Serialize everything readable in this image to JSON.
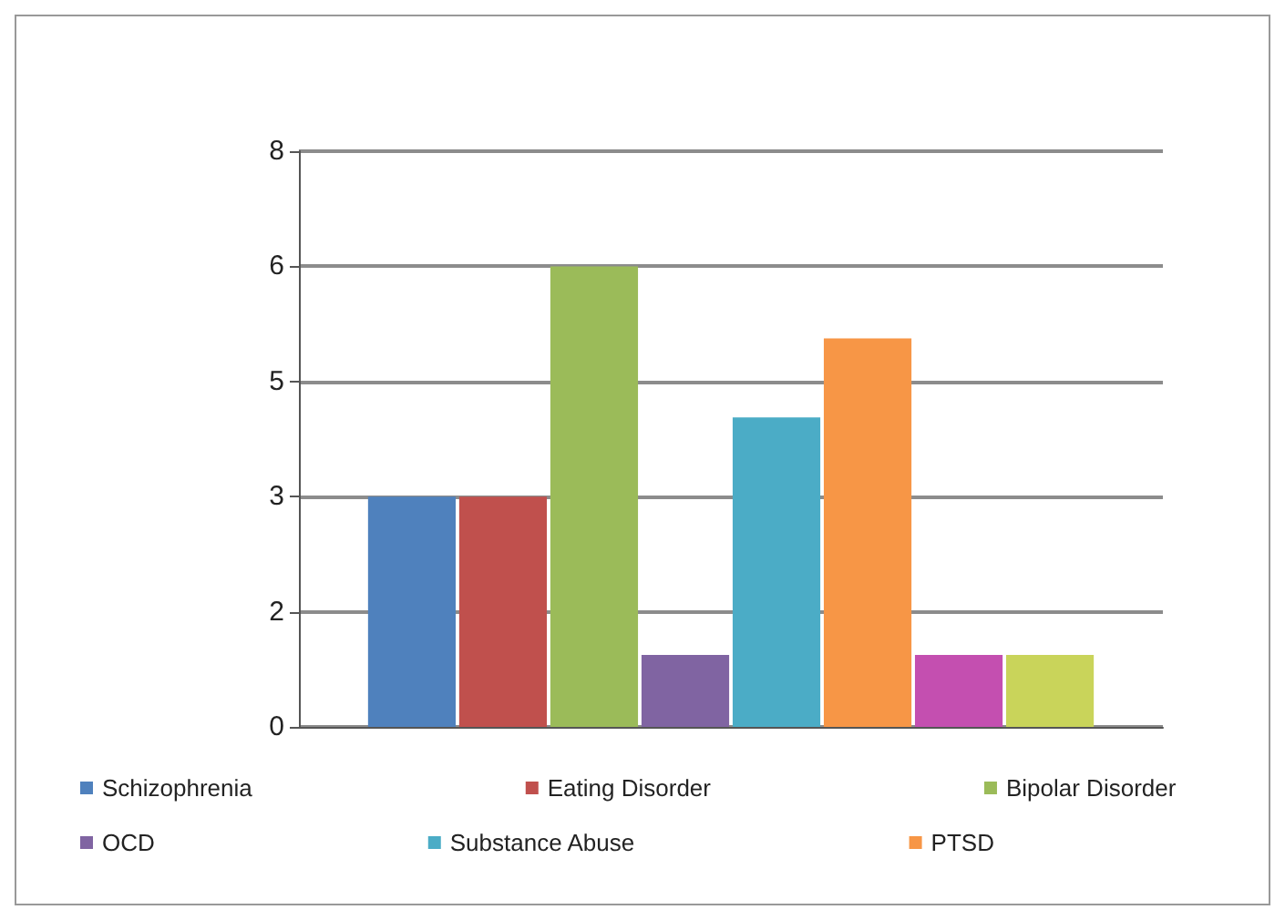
{
  "chart_data": {
    "type": "bar",
    "categories": [
      null
    ],
    "series": [
      {
        "name": "Schizophrenia",
        "color": "#4f81bd",
        "values": [
          3.2
        ]
      },
      {
        "name": "Eating Disorder",
        "color": "#c0504d",
        "values": [
          3.2
        ]
      },
      {
        "name": "Bipolar Disorder",
        "color": "#9bbb59",
        "values": [
          6.4
        ]
      },
      {
        "name": "OCD",
        "color": "#8064a2",
        "values": [
          1.0
        ]
      },
      {
        "name": "Substance Abuse",
        "color": "#4bacc6",
        "values": [
          4.3
        ]
      },
      {
        "name": "PTSD",
        "color": "#f79646",
        "values": [
          5.4
        ]
      },
      {
        "color": "#c44fb0",
        "values": [
          1.0
        ]
      },
      {
        "color": "#c9d45a",
        "values": [
          1.0
        ]
      }
    ],
    "ylim": [
      0,
      8
    ],
    "yticks": [
      0,
      {
        "value": 1.6,
        "label": "2"
      },
      {
        "value": 3.2,
        "label": "3"
      },
      {
        "value": 4.8,
        "label": "5"
      },
      {
        "value": 6.4,
        "label": "6"
      },
      8
    ],
    "grid": "y",
    "legend": "bottom"
  }
}
